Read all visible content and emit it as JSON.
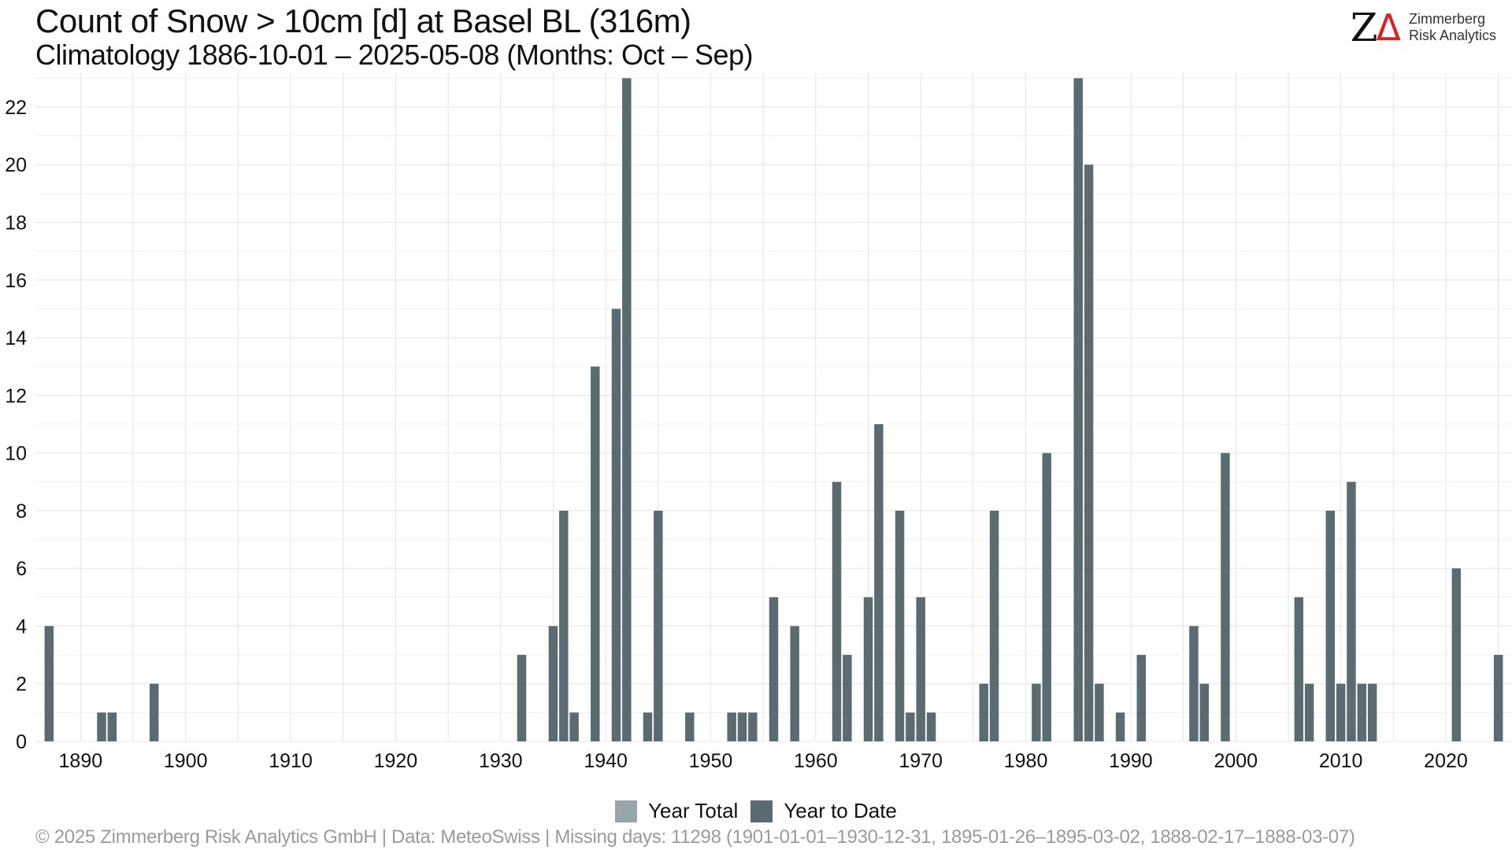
{
  "header": {
    "title": "Count of Snow > 10cm [d] at Basel  BL (316m)",
    "subtitle": "Climatology 1886-10-01 – 2025-05-08 (Months: Oct – Sep)"
  },
  "logo": {
    "mark": "Z",
    "delta": "Δ",
    "line1": "Zimmerberg",
    "line2": "Risk Analytics"
  },
  "footer": {
    "caption": "©  2025 Zimmerberg Risk Analytics GmbH | Data: MeteoSwiss | Missing days: 11298 (1901-01-01–1930-12-31, 1895-01-26–1895-03-02, 1888-02-17–1888-03-07)"
  },
  "colors": {
    "year_total": "#98a6ab",
    "year_to_date": "#5a6b71",
    "grid": "#e4e4e4"
  },
  "chart_data": {
    "type": "bar",
    "title": "Count of Snow > 10cm [d] at Basel  BL (316m)",
    "subtitle": "Climatology 1886-10-01 – 2025-05-08 (Months: Oct – Sep)",
    "xlabel": "",
    "ylabel": "",
    "xlim": [
      1885.7,
      2026.3
    ],
    "ylim": [
      0,
      23.2
    ],
    "x_ticks": [
      1890,
      1900,
      1910,
      1920,
      1930,
      1940,
      1950,
      1960,
      1970,
      1980,
      1990,
      2000,
      2010,
      2020
    ],
    "y_ticks": [
      0,
      2,
      4,
      6,
      8,
      10,
      12,
      14,
      16,
      18,
      20,
      22
    ],
    "grid": true,
    "legend_position": "bottom",
    "series": [
      {
        "name": "Year Total",
        "x": [
          2025
        ],
        "values": [
          3
        ]
      },
      {
        "name": "Year to Date",
        "x": [
          1887,
          1892,
          1893,
          1897,
          1932,
          1935,
          1936,
          1937,
          1939,
          1941,
          1942,
          1944,
          1945,
          1948,
          1952,
          1953,
          1954,
          1956,
          1958,
          1962,
          1963,
          1965,
          1966,
          1968,
          1969,
          1970,
          1971,
          1976,
          1977,
          1981,
          1982,
          1985,
          1986,
          1987,
          1989,
          1991,
          1996,
          1997,
          1999,
          2006,
          2007,
          2009,
          2010,
          2011,
          2012,
          2013,
          2021,
          2025
        ],
        "values": [
          4,
          1,
          1,
          2,
          3,
          4,
          8,
          1,
          13,
          15,
          23,
          1,
          8,
          1,
          1,
          1,
          1,
          5,
          4,
          9,
          3,
          5,
          11,
          8,
          1,
          5,
          1,
          2,
          8,
          2,
          10,
          23,
          20,
          2,
          1,
          3,
          4,
          2,
          10,
          5,
          2,
          8,
          2,
          9,
          2,
          2,
          6,
          3
        ]
      }
    ]
  }
}
